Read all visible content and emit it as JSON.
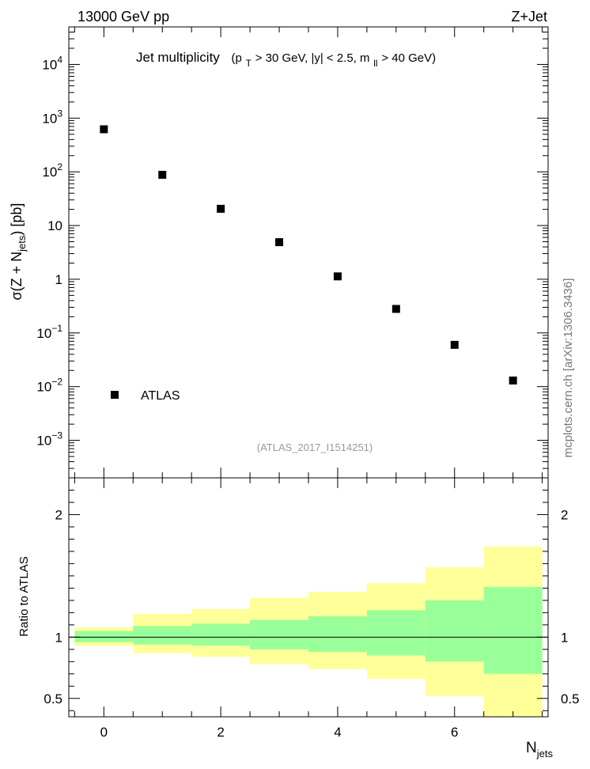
{
  "header": {
    "energy_label": "13000 GeV pp",
    "process_label": "Z+Jet"
  },
  "watermark": "mcplots.cern.ch [arXiv:1306.3436]",
  "chart_data": [
    {
      "type": "scatter",
      "title": "Jet multiplicity",
      "cuts": {
        "open": "(p",
        "pt_sub": "T",
        "mid": " > 30 GeV, |y| < 2.5, m",
        "m_sub": "ll",
        "close": " > 40 GeV)"
      },
      "analysis_id": "(ATLAS_2017_I1514251)",
      "ylabel": {
        "main": "σ(Z + N",
        "sub": "jets",
        "tail": ") [pb]"
      },
      "yscale": "log",
      "ylim": [
        0.0002,
        50000
      ],
      "xlim": [
        -0.6,
        7.6
      ],
      "legend_placement": "bottom-left",
      "series": [
        {
          "name": "ATLAS",
          "marker": "square",
          "color": "#000000",
          "x": [
            0,
            1,
            2,
            3,
            4,
            5,
            6,
            7
          ],
          "y": [
            620,
            88,
            20.5,
            4.9,
            1.13,
            0.28,
            0.06,
            0.013
          ]
        }
      ],
      "y_ticks": [
        {
          "value": 0.001,
          "base": "10",
          "exp": "−3"
        },
        {
          "value": 0.01,
          "base": "10",
          "exp": "−2"
        },
        {
          "value": 0.1,
          "base": "10",
          "exp": "−1"
        },
        {
          "value": 1,
          "base": "1",
          "exp": ""
        },
        {
          "value": 10,
          "base": "10",
          "exp": ""
        },
        {
          "value": 100,
          "base": "10",
          "exp": "2"
        },
        {
          "value": 1000,
          "base": "10",
          "exp": "3"
        },
        {
          "value": 10000,
          "base": "10",
          "exp": "4"
        }
      ]
    },
    {
      "type": "area",
      "ylabel": "Ratio to ATLAS",
      "xlabel": {
        "main": "N",
        "sub": "jets"
      },
      "ylim": [
        0.35,
        2.3
      ],
      "xlim": [
        -0.6,
        7.6
      ],
      "reference_line": 1,
      "bins": [
        {
          "lo": -0.5,
          "hi": 0.5,
          "inner": [
            0.96,
            1.05
          ],
          "outer": [
            0.93,
            1.08
          ]
        },
        {
          "lo": 0.5,
          "hi": 1.5,
          "inner": [
            0.94,
            1.09
          ],
          "outer": [
            0.87,
            1.19
          ]
        },
        {
          "lo": 1.5,
          "hi": 2.5,
          "inner": [
            0.93,
            1.11
          ],
          "outer": [
            0.84,
            1.23
          ]
        },
        {
          "lo": 2.5,
          "hi": 3.5,
          "inner": [
            0.9,
            1.14
          ],
          "outer": [
            0.78,
            1.32
          ]
        },
        {
          "lo": 3.5,
          "hi": 4.5,
          "inner": [
            0.88,
            1.17
          ],
          "outer": [
            0.74,
            1.37
          ]
        },
        {
          "lo": 4.5,
          "hi": 5.5,
          "inner": [
            0.85,
            1.22
          ],
          "outer": [
            0.66,
            1.44
          ]
        },
        {
          "lo": 5.5,
          "hi": 6.5,
          "inner": [
            0.8,
            1.3
          ],
          "outer": [
            0.52,
            1.57
          ]
        },
        {
          "lo": 6.5,
          "hi": 7.5,
          "inner": [
            0.7,
            1.41
          ],
          "outer": [
            0.35,
            1.74
          ]
        }
      ],
      "band_colors": {
        "inner": "#99ff99",
        "outer": "#ffff99"
      },
      "y_ticks": [
        0.5,
        1,
        2
      ],
      "y_tick_labels": [
        "0.5",
        "1",
        "2"
      ],
      "x_ticks": [
        0,
        2,
        4,
        6
      ],
      "x_tick_labels": [
        "0",
        "2",
        "4",
        "6"
      ]
    }
  ]
}
